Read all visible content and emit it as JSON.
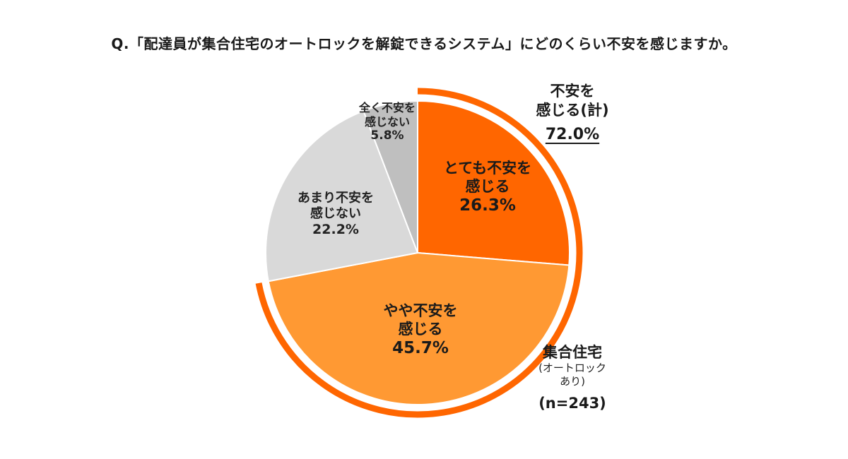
{
  "title": "Q.「配達員が集合住宅のオートロックを解錠できるシステム」にどのくらい不安を感じますか。",
  "chart_data": {
    "type": "pie",
    "start_angle_deg": 0,
    "direction": "clockwise",
    "slices": [
      {
        "label_line1": "とても不安を",
        "label_line2": "感じる",
        "value": 26.3,
        "pct_text": "26.3%",
        "color": "#FF6600"
      },
      {
        "label_line1": "やや不安を",
        "label_line2": "感じる",
        "value": 45.7,
        "pct_text": "45.7%",
        "color": "#FF9933"
      },
      {
        "label_line1": "あまり不安を",
        "label_line2": "感じない",
        "value": 22.2,
        "pct_text": "22.2%",
        "color": "#D9D9D9"
      },
      {
        "label_line1": "全く不安を",
        "label_line2": "感じない",
        "value": 5.8,
        "pct_text": "5.8%",
        "color": "#BFBFBF"
      }
    ],
    "highlight_arc": {
      "color": "#FF6600",
      "covers_slices": [
        0,
        1
      ],
      "label_line1": "不安を",
      "label_line2": "感じる(計)",
      "value_text": "72.0%"
    },
    "sample_note": {
      "line1": "集合住宅",
      "line2": "(オートロック",
      "line3": "あり)",
      "n_text": "(n=243)"
    }
  }
}
